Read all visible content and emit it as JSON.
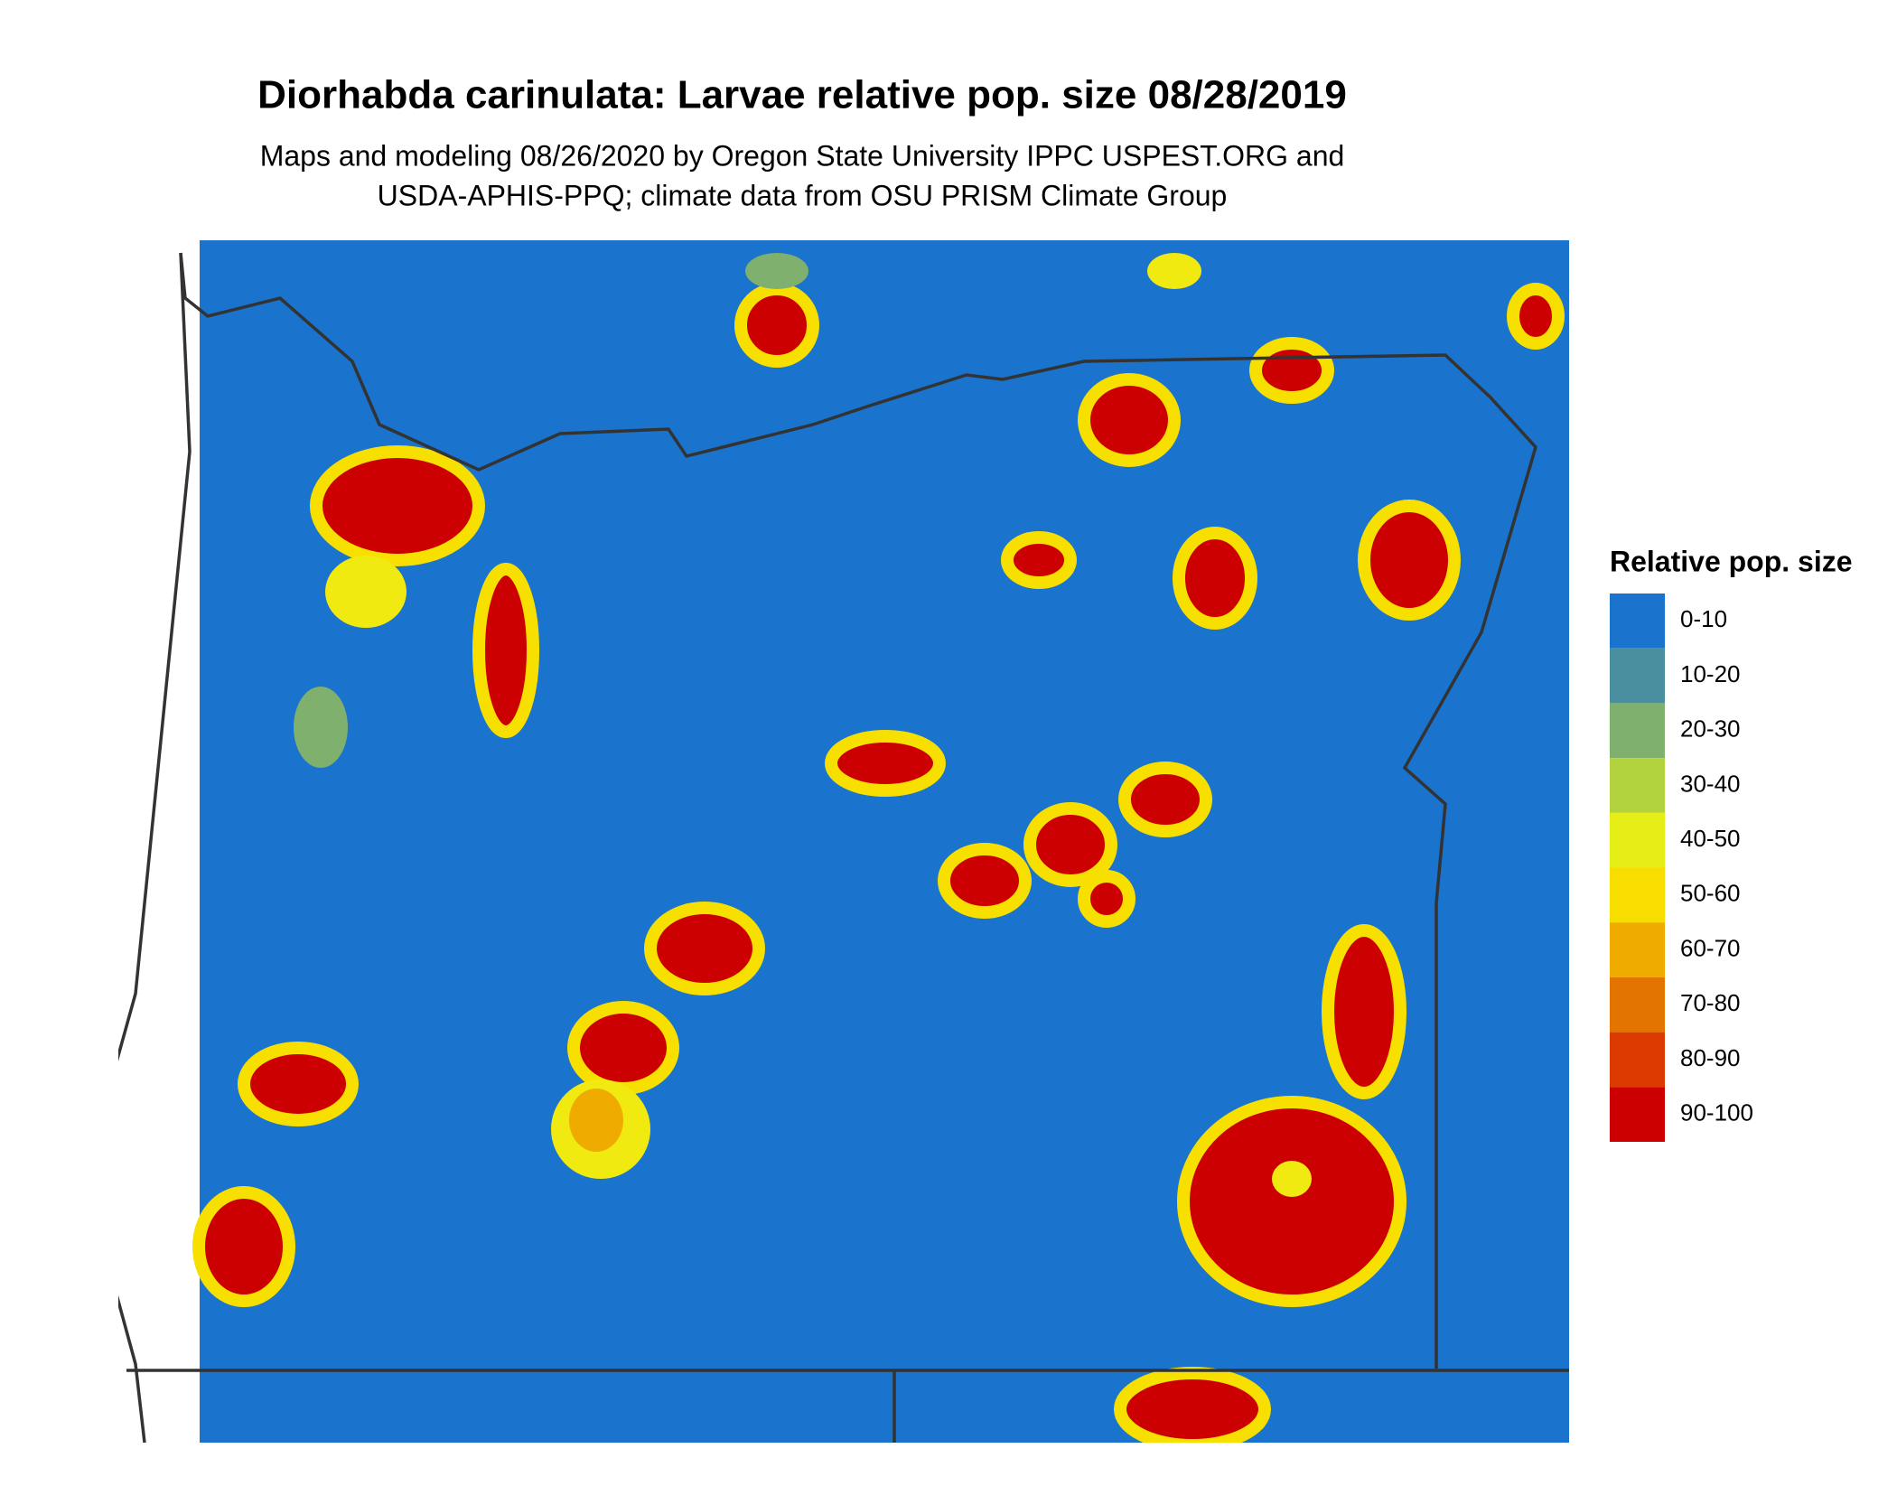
{
  "header": {
    "title": "Diorhabda carinulata: Larvae relative pop. size 08/28/2019",
    "subtitle": [
      "Maps and modeling 08/26/2020 by Oregon State University IPPC USPEST.ORG and",
      "USDA-APHIS-PPQ; climate data from OSU PRISM Climate Group"
    ]
  },
  "legend": {
    "title": "Relative pop. size",
    "items": [
      {
        "label": "0-10",
        "color": "#1a73cc"
      },
      {
        "label": "10-20",
        "color": "#4a8fa0"
      },
      {
        "label": "20-30",
        "color": "#7fb06e"
      },
      {
        "label": "30-40",
        "color": "#b3d33e"
      },
      {
        "label": "40-50",
        "color": "#e6ee17"
      },
      {
        "label": "50-60",
        "color": "#f7de00"
      },
      {
        "label": "60-70",
        "color": "#f0ab00"
      },
      {
        "label": "70-80",
        "color": "#e37400"
      },
      {
        "label": "80-90",
        "color": "#db3a00"
      },
      {
        "label": "90-100",
        "color": "#cc0000"
      }
    ]
  }
}
